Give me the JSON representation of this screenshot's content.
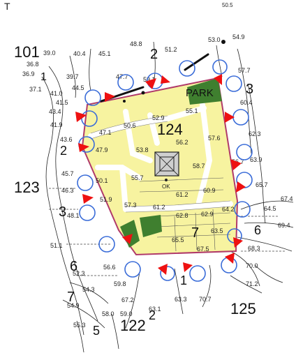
{
  "map": {
    "colors": {
      "site_fill": "#f7f3a0",
      "boundary": "#b03a6a",
      "park": "#3f7f2f",
      "road": "#ffffff",
      "circle": "#3a6cd8",
      "arrow": "#ee1111",
      "contour": "#222222"
    },
    "corner_mark": "T",
    "zones": [
      {
        "label": "101"
      },
      {
        "label": "2"
      },
      {
        "label": "3"
      },
      {
        "label": "123"
      },
      {
        "label": "3"
      },
      {
        "label": "6"
      },
      {
        "label": "7"
      },
      {
        "label": "5"
      },
      {
        "label": "2"
      },
      {
        "label": "122"
      },
      {
        "label": "1"
      },
      {
        "label": "125"
      },
      {
        "label": "6"
      },
      {
        "label": "124"
      },
      {
        "label": "7"
      },
      {
        "label": "PARK"
      },
      {
        "label": "1"
      },
      {
        "label": "2"
      }
    ],
    "elevations": [
      "50.5",
      "53.0",
      "54.9",
      "57.7",
      "51.2",
      "48.8",
      "45.1",
      "40.4",
      "39.0",
      "36.8",
      "36.9",
      "37.1",
      "39.7",
      "44.5",
      "47.7",
      "59.1",
      "60.4",
      "62.3",
      "63.9",
      "65.7",
      "67.4",
      "64.5",
      "69.4",
      "68.3",
      "70.0",
      "71.2",
      "63.3",
      "63.1",
      "70.7",
      "67.2",
      "59.0",
      "58.0",
      "55.3",
      "54.9",
      "54.3",
      "52.3",
      "56.6",
      "59.8",
      "51.1",
      "48.1",
      "46.3",
      "45.7",
      "43.6",
      "41.9",
      "43.4",
      "41.5",
      "41.0",
      "47.1",
      "50.6",
      "52.9",
      "55.1",
      "56.2",
      "57.6",
      "58.7",
      "56.7",
      "61.2",
      "60.9",
      "62.8",
      "62.9",
      "64.2",
      "65.5",
      "61.2",
      "57.3",
      "55.7",
      "53.8",
      "51.9",
      "50.1",
      "47.9",
      "67.5",
      "63.5"
    ],
    "ok_label": "OK"
  }
}
